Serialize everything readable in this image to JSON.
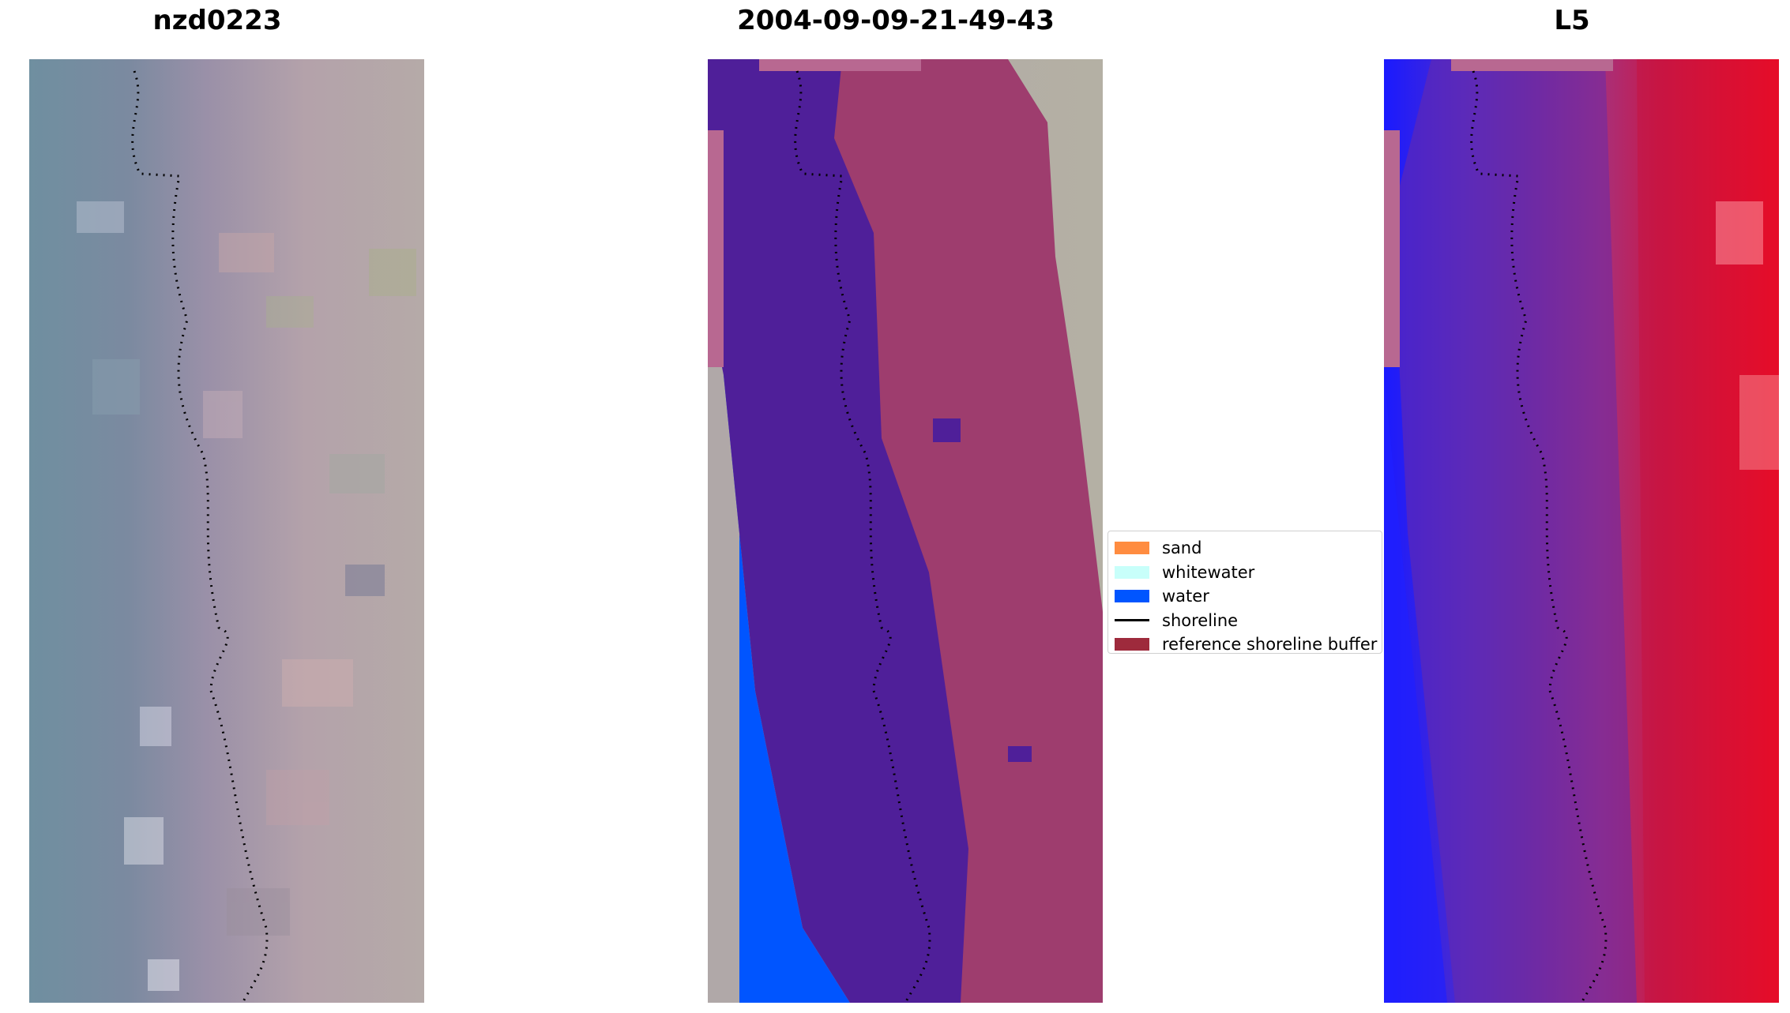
{
  "panels": [
    {
      "title": "nzd0223"
    },
    {
      "title": "2004-09-09-21-49-43"
    },
    {
      "title": "L5"
    }
  ],
  "legend": {
    "items": [
      {
        "label": "sand",
        "color": "#ff8c40",
        "kind": "patch"
      },
      {
        "label": "whitewater",
        "color": "#c8fffa",
        "kind": "patch"
      },
      {
        "label": "water",
        "color": "#0055ff",
        "kind": "patch"
      },
      {
        "label": "shoreline",
        "color": "#000000",
        "kind": "line"
      },
      {
        "label": "reference shoreline buffer",
        "color": "#9e2a3c",
        "kind": "patch"
      }
    ]
  },
  "colors": {
    "water_class": "#0055ff",
    "water_overlay": "#4f1f99",
    "land_overlay": "#9e3d6e",
    "buffer_cap": "#b86891",
    "mndwi_low": "#1a1aff",
    "mndwi_high": "#ff0a1a"
  }
}
